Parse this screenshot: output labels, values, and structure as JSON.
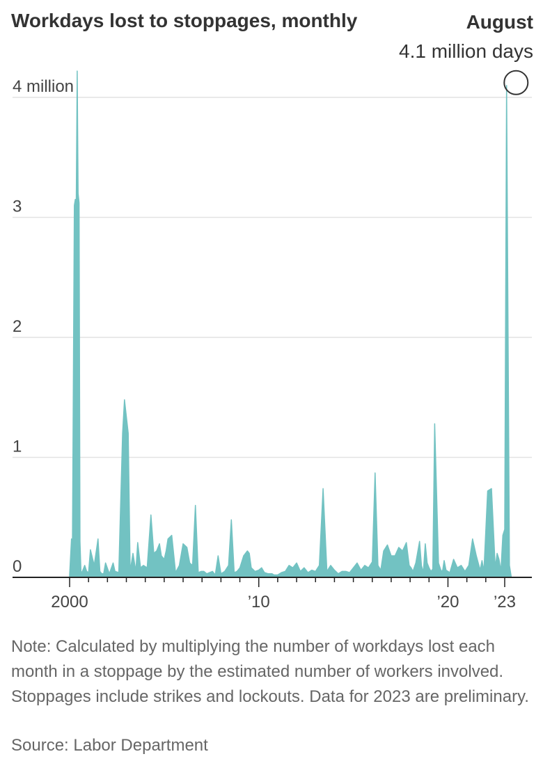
{
  "chart_data": {
    "type": "area",
    "title": "Workdays lost to stoppages, monthly",
    "unit": "million",
    "y_ticks": [
      {
        "value": 4,
        "label": "4 million"
      },
      {
        "value": 3,
        "label": "3"
      },
      {
        "value": 2,
        "label": "2"
      },
      {
        "value": 1,
        "label": "1"
      },
      {
        "value": 0,
        "label": "0"
      }
    ],
    "x_ticks": [
      {
        "value": 2000,
        "label": "2000"
      },
      {
        "value": 2010,
        "label": "’10"
      },
      {
        "value": 2020,
        "label": "’20"
      },
      {
        "value": 2023,
        "label": "’23"
      }
    ],
    "xlim": [
      2000,
      2023.7
    ],
    "ylim": [
      0,
      4.2
    ],
    "grid": true,
    "color": "#72c2c2",
    "annotation": {
      "label": "August",
      "value_label": "4.1 million days",
      "x": 2023.6,
      "y": 4.1
    },
    "series": [
      {
        "x": [
          2000.0,
          2000.1,
          2000.15,
          2000.25,
          2000.3,
          2000.35,
          2000.4,
          2000.45,
          2000.5,
          2000.55,
          2000.6,
          2000.65,
          2000.7,
          2000.75,
          2000.8,
          2000.9,
          2001.0,
          2001.1,
          2001.3,
          2001.5,
          2001.6,
          2001.7,
          2001.8,
          2001.9,
          2002.1,
          2002.3,
          2002.4,
          2002.6,
          2002.8,
          2002.9,
          2003.1,
          2003.2,
          2003.35,
          2003.5,
          2003.6,
          2003.75,
          2003.9,
          2004.1,
          2004.3,
          2004.45,
          2004.6,
          2004.75,
          2004.85,
          2005.0,
          2005.1,
          2005.2,
          2005.4,
          2005.6,
          2005.8,
          2006.0,
          2006.2,
          2006.35,
          2006.5,
          2006.65,
          2006.8,
          2006.95,
          2007.1,
          2007.25,
          2007.4,
          2007.55,
          2007.7,
          2007.85,
          2008.0,
          2008.2,
          2008.4,
          2008.55,
          2008.7,
          2008.85,
          2009.0,
          2009.2,
          2009.4,
          2009.5,
          2009.6,
          2009.8,
          2010.0,
          2010.15,
          2010.3,
          2010.5,
          2010.7,
          2010.8,
          2011.0,
          2011.2,
          2011.4,
          2011.6,
          2011.8,
          2012.0,
          2012.2,
          2012.4,
          2012.6,
          2012.8,
          2013.0,
          2013.2,
          2013.4,
          2013.6,
          2013.8,
          2014.0,
          2014.2,
          2014.4,
          2014.6,
          2014.8,
          2015.0,
          2015.2,
          2015.4,
          2015.6,
          2015.8,
          2016.0,
          2016.15,
          2016.3,
          2016.45,
          2016.6,
          2016.8,
          2017.0,
          2017.2,
          2017.4,
          2017.6,
          2017.8,
          2017.95,
          2018.05,
          2018.15,
          2018.3,
          2018.5,
          2018.6,
          2018.7,
          2018.8,
          2018.9,
          2019.0,
          2019.1,
          2019.2,
          2019.3,
          2019.5,
          2019.65,
          2019.72,
          2019.8,
          2019.9,
          2020.1,
          2020.3,
          2020.5,
          2020.7,
          2020.9,
          2021.1,
          2021.3,
          2021.5,
          2021.7,
          2021.8,
          2021.9,
          2022.1,
          2022.3,
          2022.5,
          2022.6,
          2022.7,
          2022.8,
          2022.9,
          2023.0,
          2023.1,
          2023.25,
          2023.35,
          2023.45,
          2023.55,
          2023.6,
          2023.68
        ],
        "y": [
          0.02,
          0.32,
          0.3,
          3.1,
          3.15,
          3.1,
          4.22,
          3.2,
          3.12,
          0.3,
          0.05,
          0.04,
          0.06,
          0.08,
          0.1,
          0.05,
          0.04,
          0.23,
          0.1,
          0.32,
          0.05,
          0.03,
          0.03,
          0.12,
          0.03,
          0.12,
          0.05,
          0.04,
          1.2,
          1.48,
          1.2,
          0.05,
          0.2,
          0.05,
          0.29,
          0.08,
          0.1,
          0.08,
          0.52,
          0.2,
          0.22,
          0.28,
          0.18,
          0.15,
          0.22,
          0.32,
          0.35,
          0.04,
          0.1,
          0.28,
          0.25,
          0.12,
          0.1,
          0.6,
          0.04,
          0.05,
          0.05,
          0.03,
          0.04,
          0.05,
          0.02,
          0.18,
          0.03,
          0.05,
          0.1,
          0.48,
          0.04,
          0.05,
          0.08,
          0.18,
          0.22,
          0.2,
          0.08,
          0.05,
          0.06,
          0.08,
          0.04,
          0.03,
          0.03,
          0.02,
          0.02,
          0.04,
          0.05,
          0.1,
          0.08,
          0.12,
          0.05,
          0.08,
          0.04,
          0.06,
          0.05,
          0.1,
          0.74,
          0.05,
          0.1,
          0.06,
          0.03,
          0.05,
          0.05,
          0.04,
          0.08,
          0.12,
          0.06,
          0.1,
          0.08,
          0.13,
          0.87,
          0.1,
          0.06,
          0.22,
          0.27,
          0.18,
          0.18,
          0.25,
          0.22,
          0.29,
          0.1,
          0.08,
          0.05,
          0.12,
          0.3,
          0.1,
          0.04,
          0.28,
          0.12,
          0.08,
          0.05,
          0.07,
          1.28,
          0.12,
          0.05,
          0.06,
          0.14,
          0.06,
          0.04,
          0.15,
          0.08,
          0.1,
          0.05,
          0.1,
          0.32,
          0.18,
          0.06,
          0.14,
          0.05,
          0.72,
          0.74,
          0.08,
          0.2,
          0.15,
          0.05,
          0.35,
          0.4,
          4.1,
          0.1,
          0.0,
          0.0,
          0.0,
          0.0,
          0.0
        ]
      }
    ],
    "note": "Note: Calculated by multiplying the number of workdays lost each month in a stoppage by the estimated number of workers involved. Stoppages include strikes and lockouts. Data for 2023 are preliminary.",
    "source": "Source: Labor Department"
  }
}
